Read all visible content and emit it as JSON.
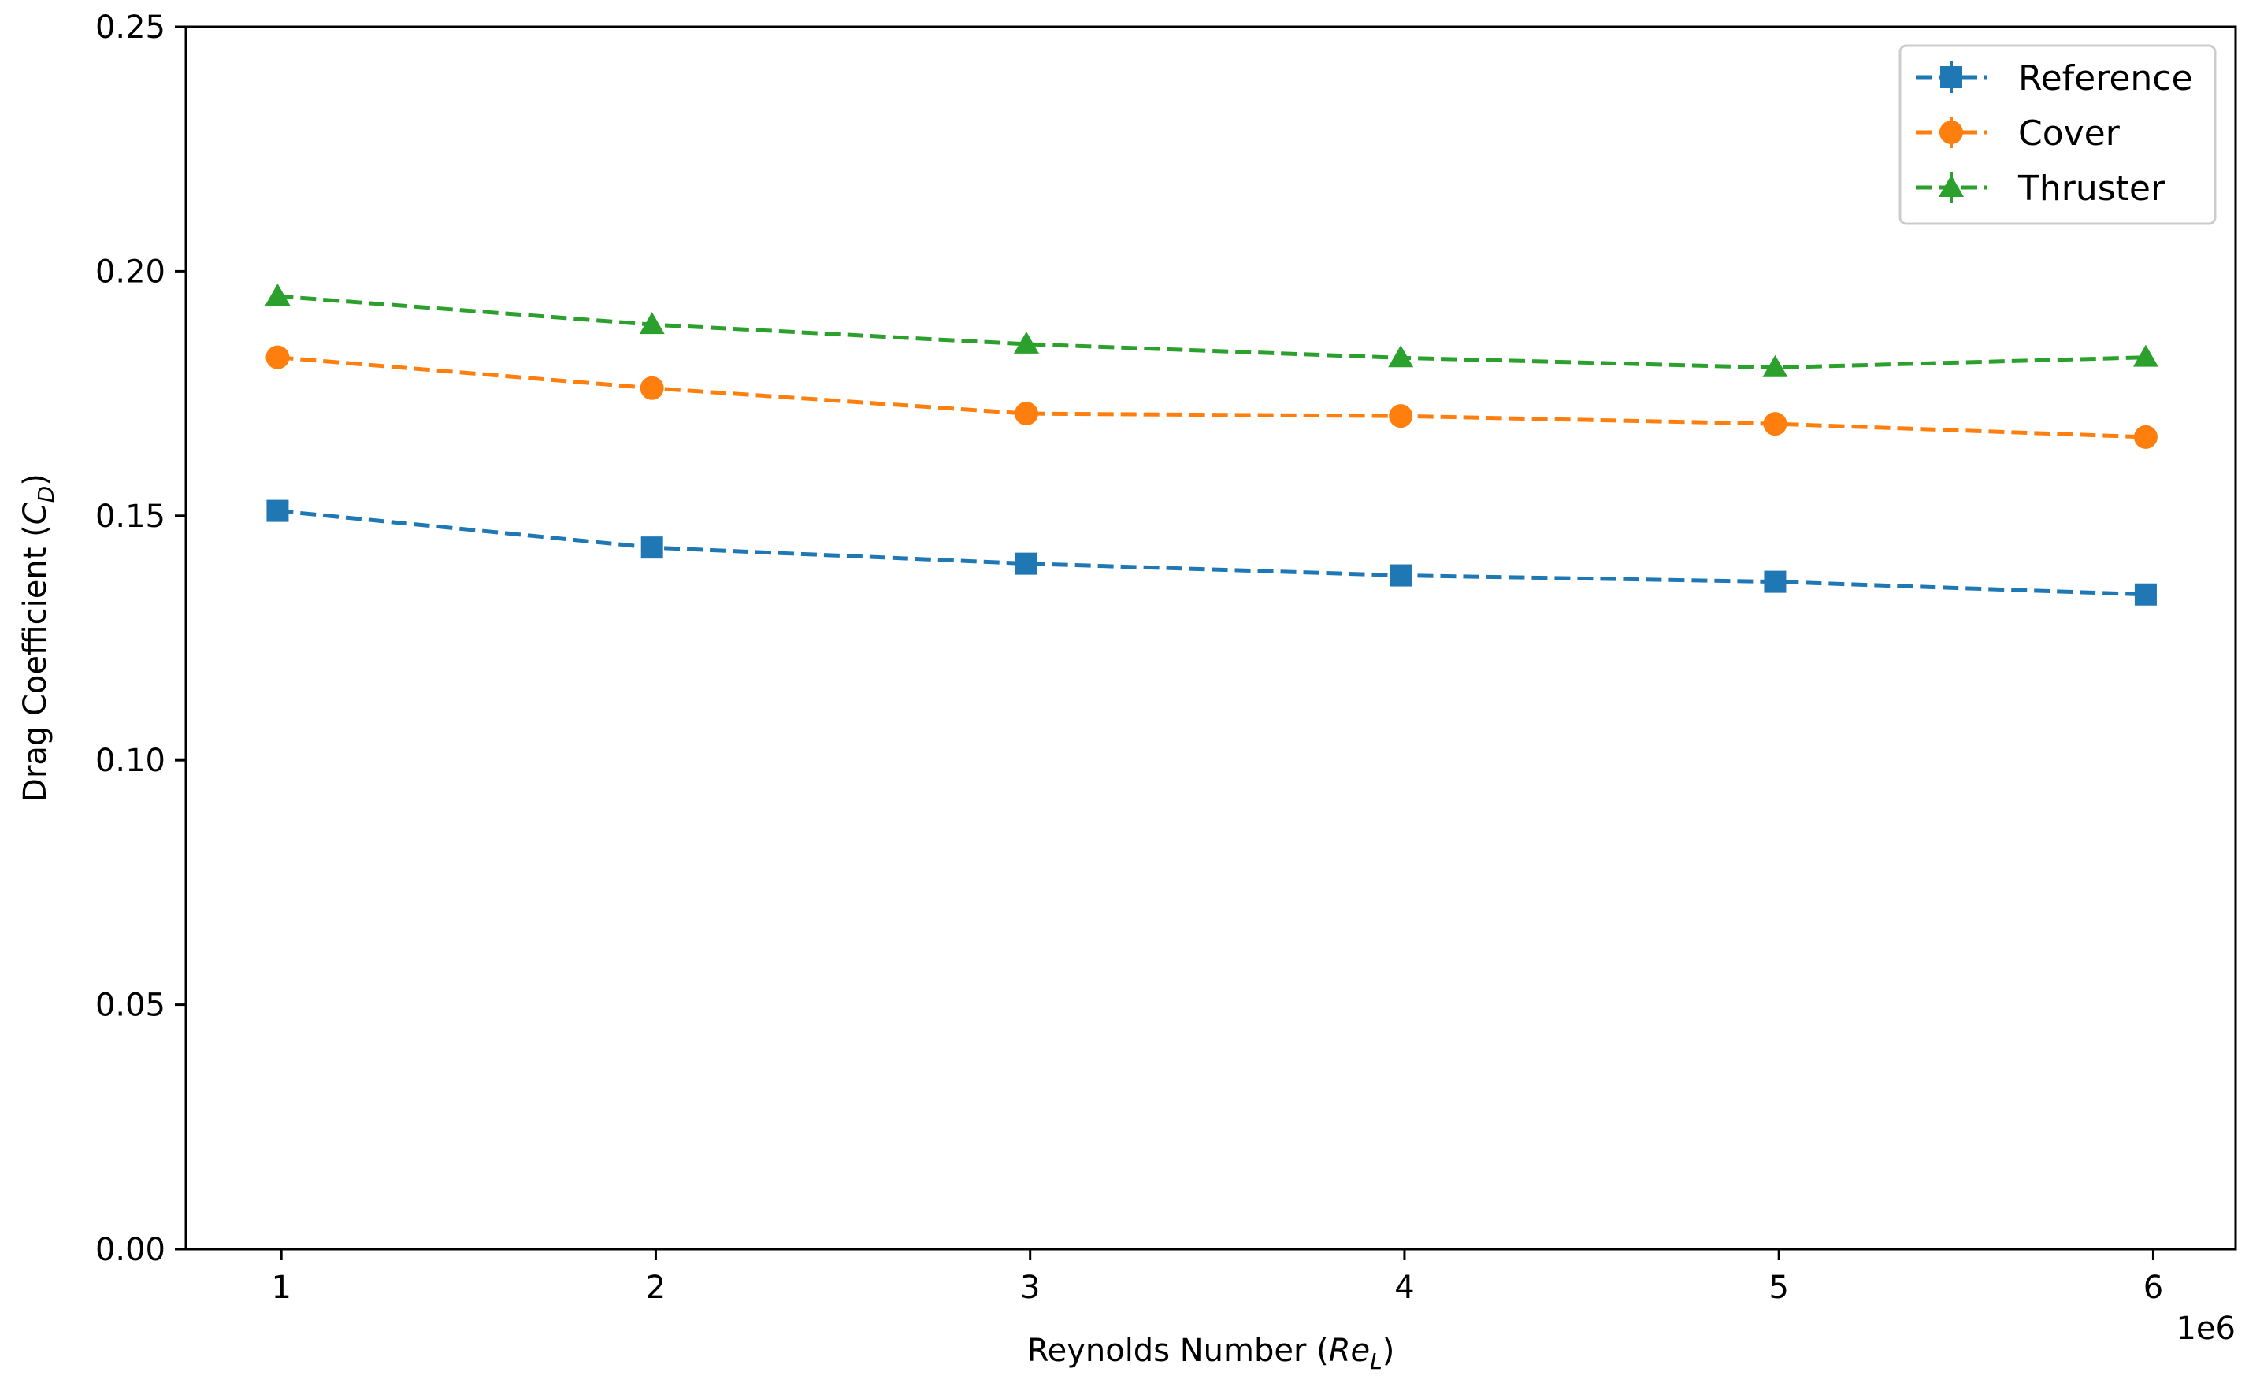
{
  "chart_data": {
    "type": "line",
    "title": "",
    "xlabel_prefix": "Reynolds Number (",
    "xlabel_symbol": "Re",
    "xlabel_subscript": "L",
    "xlabel_suffix": ")",
    "ylabel_prefix": "Drag Coefficient (",
    "ylabel_symbol": "C",
    "ylabel_subscript": "D",
    "ylabel_suffix": ")",
    "x_offset_label": "1e6",
    "x": [
      0.99,
      1.99,
      2.99,
      3.99,
      4.99,
      5.98
    ],
    "xlim": [
      0.745,
      6.22
    ],
    "ylim": [
      0.0,
      0.25
    ],
    "xticks": [
      1,
      2,
      3,
      4,
      5,
      6
    ],
    "xtick_labels": [
      "1",
      "2",
      "3",
      "4",
      "5",
      "6"
    ],
    "yticks": [
      0.0,
      0.05,
      0.1,
      0.15,
      0.2,
      0.25
    ],
    "ytick_labels": [
      "0.00",
      "0.05",
      "0.10",
      "0.15",
      "0.20",
      "0.25"
    ],
    "grid": false,
    "legend_position": "top-right",
    "series": [
      {
        "name": "Reference",
        "color": "#1f77b4",
        "marker": "square",
        "linestyle": "dashed",
        "values": [
          0.151,
          0.1435,
          0.1402,
          0.1378,
          0.1365,
          0.1339
        ]
      },
      {
        "name": "Cover",
        "color": "#ff7f0e",
        "marker": "circle",
        "linestyle": "dashed",
        "values": [
          0.1824,
          0.1761,
          0.1709,
          0.1704,
          0.1688,
          0.1661
        ]
      },
      {
        "name": "Thruster",
        "color": "#2ca02c",
        "marker": "triangle",
        "linestyle": "dashed",
        "values": [
          0.1949,
          0.1891,
          0.1851,
          0.1823,
          0.1803,
          0.1824
        ]
      }
    ]
  }
}
